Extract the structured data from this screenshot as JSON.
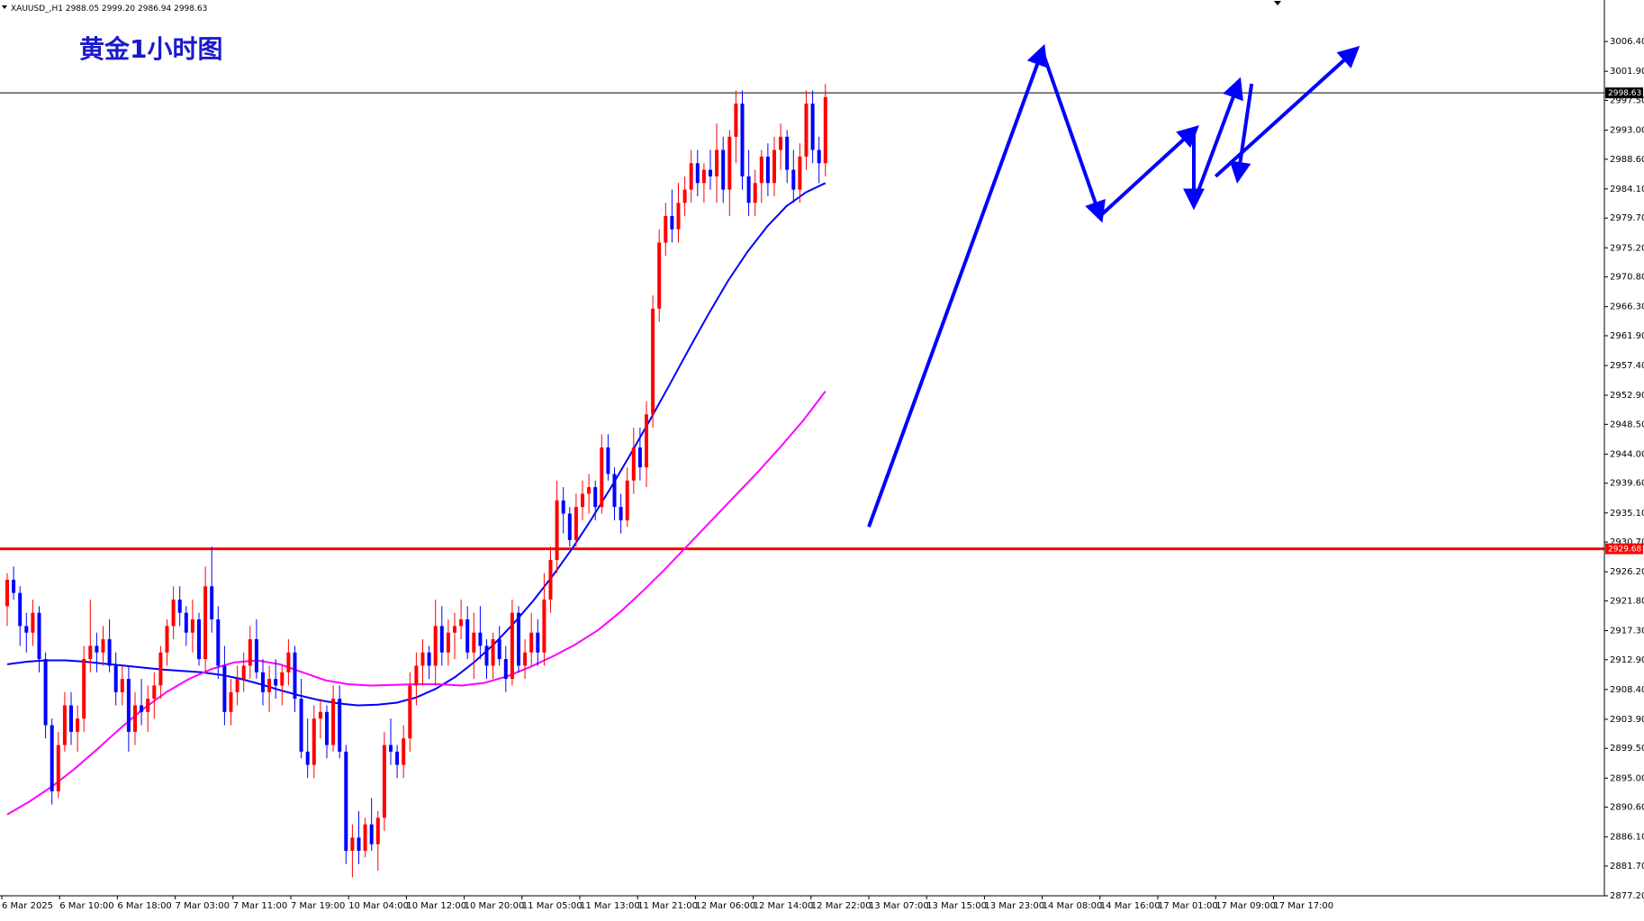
{
  "header": {
    "symbol_info": "XAUUSD_,H1  2988.05 2999.20 2986.94 2998.63",
    "menu_icon": "triangle-down-icon"
  },
  "title": "黄金1小时图",
  "current_price_label": "2998.63",
  "resistance_label": "2929.68",
  "colors": {
    "bull": "#ff0000",
    "bear": "#0000ff",
    "ma_fast": "#0000ff",
    "ma_slow": "#ff00ff",
    "resistance": "#ff0000",
    "annotation_arrows": "#0000ff",
    "title": "#1a1acc"
  },
  "chart_data": {
    "type": "candlestick",
    "ylim": [
      2877.2,
      3010.5
    ],
    "y_ticks": [
      3006.4,
      3001.9,
      2997.5,
      2993.0,
      2988.6,
      2984.1,
      2979.7,
      2975.2,
      2970.8,
      2966.3,
      2961.9,
      2957.4,
      2952.9,
      2948.5,
      2944.0,
      2939.6,
      2935.1,
      2930.7,
      2926.2,
      2921.8,
      2917.3,
      2912.9,
      2908.4,
      2903.9,
      2899.5,
      2895.0,
      2890.6,
      2886.1,
      2881.7,
      2877.2
    ],
    "x_ticks": [
      "6 Mar 2025",
      "6 Mar 10:00",
      "6 Mar 18:00",
      "7 Mar 03:00",
      "7 Mar 11:00",
      "7 Mar 19:00",
      "10 Mar 04:00",
      "10 Mar 12:00",
      "10 Mar 20:00",
      "11 Mar 05:00",
      "11 Mar 13:00",
      "11 Mar 21:00",
      "12 Mar 06:00",
      "12 Mar 14:00",
      "12 Mar 22:00",
      "13 Mar 07:00",
      "13 Mar 15:00",
      "13 Mar 23:00",
      "14 Mar 08:00",
      "14 Mar 16:00",
      "17 Mar 01:00",
      "17 Mar 09:00",
      "17 Mar 17:00"
    ],
    "horizontal_lines": [
      {
        "value": 2929.68,
        "color": "#ff0000"
      },
      {
        "value": 2998.63,
        "color": "#000000"
      }
    ],
    "candles": [
      [
        2921,
        2926,
        2918,
        2925
      ],
      [
        2925,
        2927,
        2922,
        2923
      ],
      [
        2923,
        2924,
        2915,
        2918
      ],
      [
        2918,
        2920,
        2914,
        2917
      ],
      [
        2917,
        2922,
        2915,
        2920
      ],
      [
        2920,
        2921,
        2911,
        2913
      ],
      [
        2913,
        2914,
        2901,
        2903
      ],
      [
        2903,
        2904,
        2891,
        2893
      ],
      [
        2893,
        2902,
        2892,
        2900
      ],
      [
        2900,
        2908,
        2899,
        2906
      ],
      [
        2906,
        2908,
        2900,
        2902
      ],
      [
        2902,
        2906,
        2899,
        2904
      ],
      [
        2904,
        2915,
        2902,
        2913
      ],
      [
        2913,
        2922,
        2911,
        2915
      ],
      [
        2915,
        2917,
        2911,
        2914
      ],
      [
        2914,
        2918,
        2912,
        2916
      ],
      [
        2916,
        2919,
        2911,
        2912
      ],
      [
        2912,
        2914,
        2906,
        2908
      ],
      [
        2908,
        2912,
        2906,
        2910
      ],
      [
        2910,
        2912,
        2899,
        2902
      ],
      [
        2902,
        2908,
        2900,
        2906
      ],
      [
        2906,
        2910,
        2903,
        2905
      ],
      [
        2905,
        2909,
        2902,
        2907
      ],
      [
        2907,
        2911,
        2904,
        2909
      ],
      [
        2909,
        2915,
        2907,
        2914
      ],
      [
        2914,
        2919,
        2912,
        2918
      ],
      [
        2918,
        2924,
        2916,
        2922
      ],
      [
        2922,
        2924,
        2918,
        2920
      ],
      [
        2920,
        2921,
        2915,
        2917
      ],
      [
        2917,
        2922,
        2914,
        2919
      ],
      [
        2919,
        2920,
        2912,
        2913
      ],
      [
        2913,
        2927,
        2911,
        2924
      ],
      [
        2924,
        2930,
        2917,
        2919
      ],
      [
        2919,
        2921,
        2910,
        2912
      ],
      [
        2912,
        2915,
        2903,
        2905
      ],
      [
        2905,
        2910,
        2903,
        2908
      ],
      [
        2908,
        2912,
        2906,
        2910
      ],
      [
        2910,
        2914,
        2908,
        2912
      ],
      [
        2912,
        2918,
        2910,
        2916
      ],
      [
        2916,
        2919,
        2910,
        2911
      ],
      [
        2911,
        2913,
        2906,
        2908
      ],
      [
        2908,
        2912,
        2905,
        2910
      ],
      [
        2910,
        2913,
        2907,
        2909
      ],
      [
        2909,
        2912,
        2906,
        2911
      ],
      [
        2911,
        2916,
        2909,
        2914
      ],
      [
        2914,
        2915,
        2905,
        2907
      ],
      [
        2907,
        2910,
        2898,
        2899
      ],
      [
        2899,
        2904,
        2895,
        2897
      ],
      [
        2897,
        2906,
        2895,
        2904
      ],
      [
        2904,
        2907,
        2901,
        2905
      ],
      [
        2905,
        2906,
        2898,
        2900
      ],
      [
        2900,
        2909,
        2899,
        2907
      ],
      [
        2907,
        2909,
        2898,
        2899
      ],
      [
        2899,
        2900,
        2882,
        2884
      ],
      [
        2884,
        2888,
        2880,
        2886
      ],
      [
        2886,
        2890,
        2882,
        2884
      ],
      [
        2884,
        2889,
        2883,
        2888
      ],
      [
        2888,
        2892,
        2884,
        2885
      ],
      [
        2885,
        2890,
        2881,
        2889
      ],
      [
        2889,
        2902,
        2887,
        2900
      ],
      [
        2900,
        2904,
        2897,
        2899
      ],
      [
        2899,
        2900,
        2895,
        2897
      ],
      [
        2897,
        2903,
        2895,
        2901
      ],
      [
        2901,
        2911,
        2899,
        2909
      ],
      [
        2909,
        2914,
        2906,
        2912
      ],
      [
        2912,
        2916,
        2909,
        2914
      ],
      [
        2914,
        2915,
        2910,
        2912
      ],
      [
        2912,
        2922,
        2909,
        2918
      ],
      [
        2918,
        2921,
        2912,
        2914
      ],
      [
        2914,
        2919,
        2912,
        2917
      ],
      [
        2917,
        2920,
        2913,
        2918
      ],
      [
        2918,
        2922,
        2916,
        2919
      ],
      [
        2919,
        2921,
        2913,
        2914
      ],
      [
        2914,
        2920,
        2910,
        2917
      ],
      [
        2917,
        2921,
        2913,
        2915
      ],
      [
        2915,
        2916,
        2910,
        2912
      ],
      [
        2912,
        2917,
        2910,
        2916
      ],
      [
        2916,
        2918,
        2912,
        2913
      ],
      [
        2913,
        2915,
        2908,
        2910
      ],
      [
        2910,
        2922,
        2909,
        2920
      ],
      [
        2920,
        2921,
        2911,
        2912
      ],
      [
        2912,
        2916,
        2910,
        2914
      ],
      [
        2914,
        2920,
        2912,
        2917
      ],
      [
        2917,
        2919,
        2912,
        2914
      ],
      [
        2914,
        2926,
        2912,
        2922
      ],
      [
        2922,
        2930,
        2920,
        2928
      ],
      [
        2928,
        2940,
        2926,
        2937
      ],
      [
        2937,
        2939,
        2932,
        2935
      ],
      [
        2935,
        2936,
        2930,
        2931
      ],
      [
        2931,
        2938,
        2930,
        2936
      ],
      [
        2936,
        2940,
        2934,
        2938
      ],
      [
        2938,
        2941,
        2935,
        2939
      ],
      [
        2939,
        2940,
        2934,
        2936
      ],
      [
        2936,
        2947,
        2935,
        2945
      ],
      [
        2945,
        2947,
        2940,
        2941
      ],
      [
        2941,
        2942,
        2934,
        2936
      ],
      [
        2936,
        2938,
        2932,
        2934
      ],
      [
        2934,
        2942,
        2933,
        2940
      ],
      [
        2940,
        2948,
        2938,
        2945
      ],
      [
        2945,
        2948,
        2940,
        2942
      ],
      [
        2942,
        2952,
        2939,
        2950
      ],
      [
        2950,
        2968,
        2948,
        2966
      ],
      [
        2966,
        2978,
        2964,
        2976
      ],
      [
        2976,
        2982,
        2974,
        2980
      ],
      [
        2980,
        2984,
        2976,
        2978
      ],
      [
        2978,
        2985,
        2976,
        2982
      ],
      [
        2982,
        2986,
        2980,
        2984
      ],
      [
        2984,
        2990,
        2982,
        2988
      ],
      [
        2988,
        2990,
        2983,
        2985
      ],
      [
        2985,
        2988,
        2982,
        2987
      ],
      [
        2987,
        2990,
        2984,
        2986
      ],
      [
        2986,
        2994,
        2982,
        2990
      ],
      [
        2990,
        2992,
        2982,
        2984
      ],
      [
        2984,
        2993,
        2980,
        2992
      ],
      [
        2992,
        2999,
        2988,
        2997
      ],
      [
        2997,
        2999,
        2984,
        2986
      ],
      [
        2986,
        2990,
        2980,
        2982
      ],
      [
        2982,
        2987,
        2980,
        2985
      ],
      [
        2985,
        2990,
        2982,
        2989
      ],
      [
        2989,
        2991,
        2983,
        2985
      ],
      [
        2985,
        2992,
        2983,
        2990
      ],
      [
        2990,
        2994,
        2987,
        2992
      ],
      [
        2992,
        2993,
        2985,
        2987
      ],
      [
        2987,
        2990,
        2982,
        2984
      ],
      [
        2984,
        2991,
        2982,
        2989
      ],
      [
        2989,
        2999,
        2987,
        2997
      ],
      [
        2997,
        2999,
        2988,
        2990
      ],
      [
        2990,
        2992,
        2985,
        2988
      ],
      [
        2988,
        3000,
        2986,
        2998
      ]
    ],
    "ma_fast": [
      2912.2,
      2912.6,
      2912.8,
      2912.8,
      2912.6,
      2912.3,
      2912.0,
      2911.7,
      2911.4,
      2911.2,
      2911.0,
      2910.6,
      2910.0,
      2909.2,
      2908.3,
      2907.5,
      2906.8,
      2906.3,
      2906.0,
      2906.1,
      2906.4,
      2907.2,
      2908.5,
      2910.3,
      2912.6,
      2915.3,
      2918.4,
      2921.8,
      2925.6,
      2929.7,
      2934.2,
      2939.0,
      2944.0,
      2949.2,
      2954.5,
      2959.9,
      2965.2,
      2970.2,
      2974.6,
      2978.4,
      2981.5,
      2983.6,
      2985.0
    ],
    "ma_slow": [
      2889.5,
      2891.5,
      2893.8,
      2896.5,
      2899.5,
      2902.6,
      2905.5,
      2908.0,
      2910.0,
      2911.5,
      2912.5,
      2912.8,
      2912.2,
      2911.0,
      2909.8,
      2909.2,
      2909.0,
      2909.1,
      2909.2,
      2909.2,
      2909.0,
      2909.4,
      2910.4,
      2911.8,
      2913.4,
      2915.2,
      2917.4,
      2920.2,
      2923.4,
      2926.8,
      2930.4,
      2934.0,
      2937.6,
      2941.2,
      2945.0,
      2949.0,
      2953.5
    ]
  },
  "annotations": {
    "arrows": [
      {
        "from": [
          "13 Mar 07:00",
          2933
        ],
        "to": [
          "14 Mar 08:00",
          3005
        ]
      },
      {
        "from": [
          "14 Mar 08:00",
          3005
        ],
        "to": [
          "14 Mar 16:00",
          2980
        ]
      },
      {
        "from": [
          "14 Mar 16:00",
          2980
        ],
        "to": [
          "17 Mar 01:00",
          2993
        ]
      },
      {
        "from": [
          "17 Mar 01:00",
          2993
        ],
        "to": [
          "17 Mar 01:00",
          2982
        ]
      },
      {
        "from": [
          "17 Mar 01:00",
          2982
        ],
        "to": [
          "17 Mar 09:00",
          3000
        ]
      },
      {
        "from": [
          "17 Mar 09:00",
          3000
        ],
        "to": [
          "17 Mar 09:00",
          2986
        ]
      },
      {
        "from": [
          "17 Mar 09:00",
          2986
        ],
        "to": [
          "17 Mar 17:00",
          3005
        ]
      }
    ]
  }
}
